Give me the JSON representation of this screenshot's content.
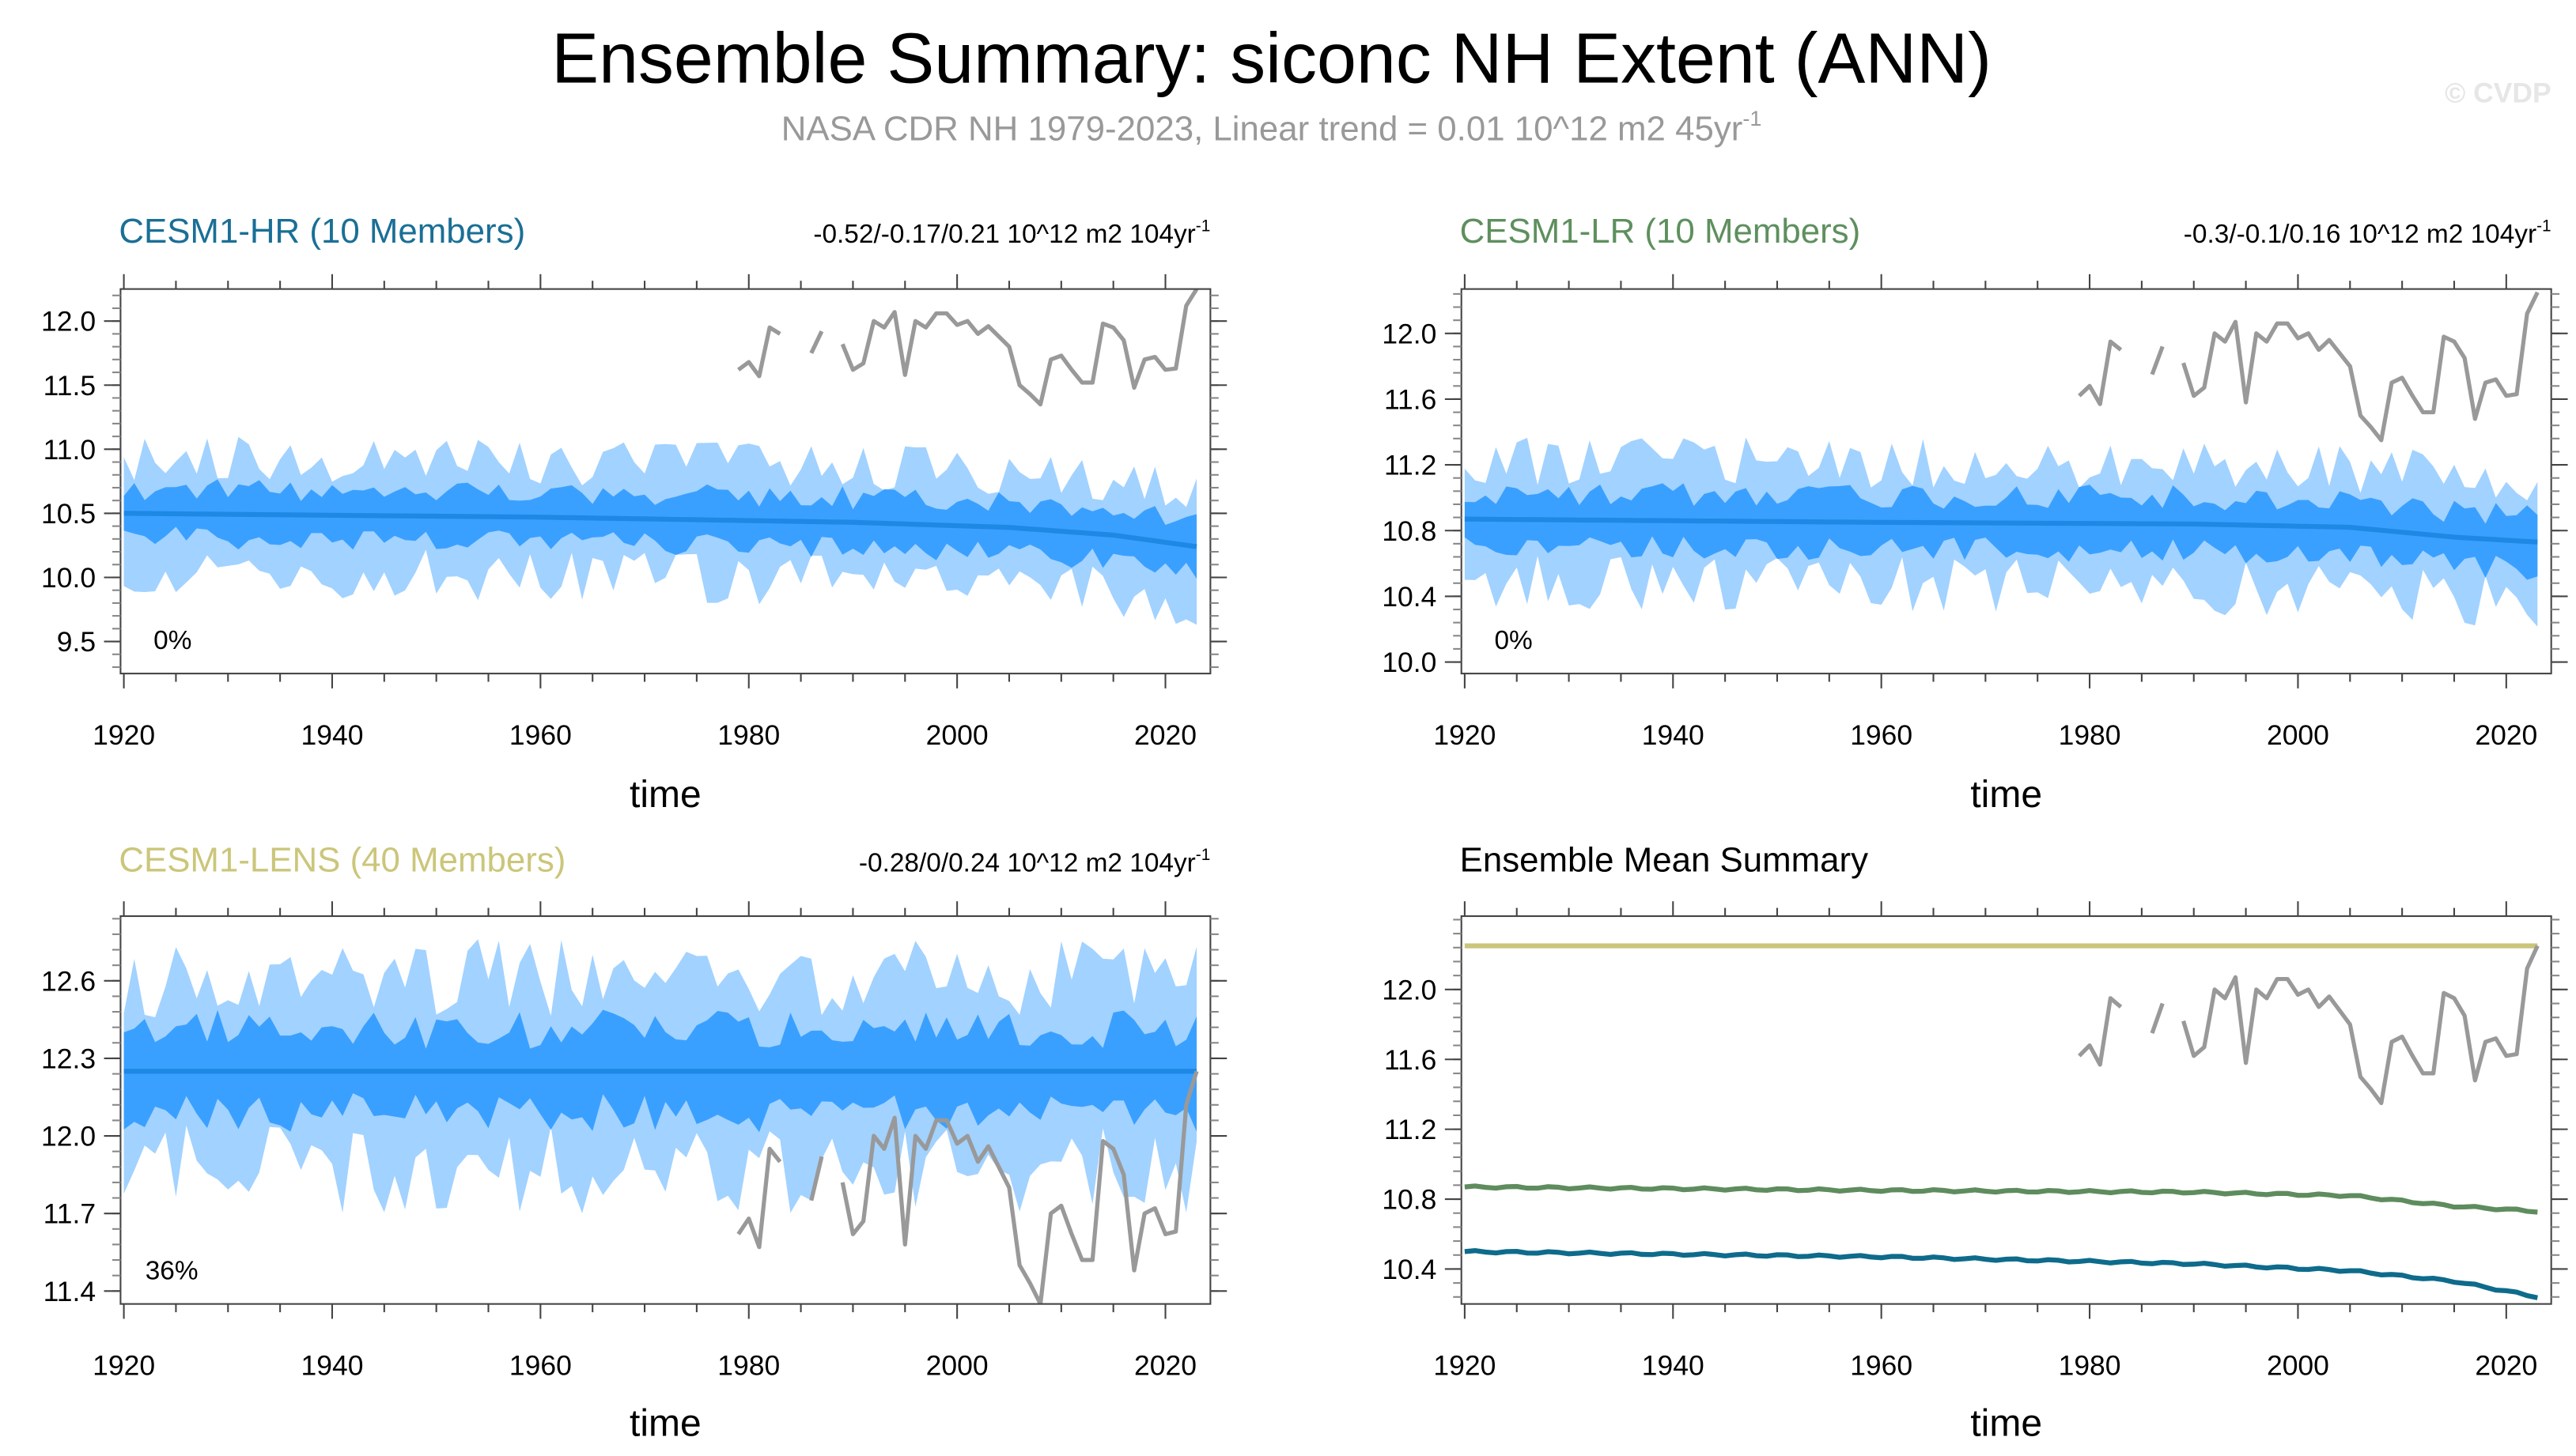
{
  "title": "Ensemble Summary: siconc NH Extent (ANN)",
  "subtitle": "NASA CDR NH 1979-2023, Linear trend = 0.01 10^12 m2 45yr",
  "subtitle_sup": "-1",
  "watermark": "© CVDP",
  "colors": {
    "band_outer": "#a2d2ff",
    "band_inner": "#3aa0ff",
    "mean": "#1e88e5",
    "obs": "#999999",
    "hr": "#0e6b8c",
    "lr": "#5e8c5e",
    "lens": "#cbc57a"
  },
  "chart_data": [
    {
      "type": "area",
      "title": "CESM1-HR (10 Members)",
      "title_color": "#1a6f96",
      "trend_text": "-0.52/-0.17/0.21 10^12 m2 104yr",
      "trend_sup": "-1",
      "percent_label": "0%",
      "xlabel": "time",
      "xlim": [
        1920,
        2024
      ],
      "xticks": [
        1920,
        1940,
        1960,
        1980,
        2000,
        2020
      ],
      "ylim": [
        9.25,
        12.25
      ],
      "yticks": [
        9.5,
        10.0,
        10.5,
        11.0,
        11.5,
        12.0
      ],
      "ytick_labels": [
        "9.5",
        "10.0",
        "10.5",
        "11.0",
        "11.5",
        "12.0"
      ],
      "ensemble_mean": {
        "years": [
          1920,
          1960,
          1990,
          2005,
          2015,
          2023
        ],
        "values": [
          10.5,
          10.47,
          10.43,
          10.39,
          10.33,
          10.24
        ]
      },
      "inner_spread": 0.2,
      "outer_spread": 0.45,
      "seed": 11
    },
    {
      "type": "area",
      "title": "CESM1-LR (10 Members)",
      "title_color": "#5e8f5e",
      "trend_text": "-0.3/-0.1/0.16 10^12 m2 104yr",
      "trend_sup": "-1",
      "percent_label": "0%",
      "xlabel": "time",
      "xlim": [
        1920,
        2024
      ],
      "xticks": [
        1920,
        1940,
        1960,
        1980,
        2000,
        2020
      ],
      "ylim": [
        9.93,
        12.27
      ],
      "yticks": [
        10.0,
        10.4,
        10.8,
        11.2,
        11.6,
        12.0
      ],
      "ytick_labels": [
        "10.0",
        "10.4",
        "10.8",
        "11.2",
        "11.6",
        "12.0"
      ],
      "ensemble_mean": {
        "years": [
          1920,
          1960,
          1990,
          2005,
          2015,
          2023
        ],
        "values": [
          10.87,
          10.85,
          10.84,
          10.82,
          10.76,
          10.73
        ]
      },
      "inner_spread": 0.17,
      "outer_spread": 0.38,
      "seed": 23
    },
    {
      "type": "area",
      "title": "CESM1-LENS (40 Members)",
      "title_color": "#cbc67a",
      "trend_text": "-0.28/0/0.24 10^12 m2 104yr",
      "trend_sup": "-1",
      "percent_label": "36%",
      "xlabel": "time",
      "xlim": [
        1920,
        2024
      ],
      "xticks": [
        1920,
        1940,
        1960,
        1980,
        2000,
        2020
      ],
      "ylim": [
        11.35,
        12.85
      ],
      "yticks": [
        11.4,
        11.7,
        12.0,
        12.3,
        12.6
      ],
      "ytick_labels": [
        "11.4",
        "11.7",
        "12.0",
        "12.3",
        "12.6"
      ],
      "ensemble_mean": {
        "years": [
          1920,
          2023
        ],
        "values": [
          12.25,
          12.25
        ]
      },
      "inner_spread": 0.17,
      "outer_spread": 0.38,
      "seed": 37
    },
    {
      "type": "line",
      "title": "Ensemble Mean Summary",
      "title_color": "#000000",
      "xlabel": "time",
      "xlim": [
        1920,
        2024
      ],
      "xticks": [
        1920,
        1940,
        1960,
        1980,
        2000,
        2020
      ],
      "ylim": [
        10.2,
        12.42
      ],
      "yticks": [
        10.4,
        10.8,
        11.2,
        11.6,
        12.0
      ],
      "ytick_labels": [
        "10.4",
        "10.8",
        "11.2",
        "11.6",
        "12.0"
      ],
      "series": [
        {
          "name": "CESM1-LENS",
          "color": "#cbc57a",
          "ref": 2
        },
        {
          "name": "CESM1-LR",
          "color": "#5e8c5e",
          "ref": 1
        },
        {
          "name": "CESM1-HR",
          "color": "#0e6b8c",
          "ref": 0
        }
      ]
    }
  ],
  "observations": {
    "name": "NASA CDR NH",
    "years": [
      1979,
      1980,
      1981,
      1982,
      1983,
      1984,
      1985,
      1986,
      1987,
      1988,
      1989,
      1990,
      1991,
      1992,
      1993,
      1994,
      1995,
      1996,
      1997,
      1998,
      1999,
      2000,
      2001,
      2002,
      2003,
      2004,
      2005,
      2006,
      2007,
      2008,
      2009,
      2010,
      2011,
      2012,
      2013,
      2014,
      2015,
      2016,
      2017,
      2018,
      2019,
      2020,
      2021,
      2022,
      2023
    ],
    "values": [
      11.62,
      11.68,
      11.57,
      11.95,
      11.9,
      null,
      null,
      11.75,
      11.92,
      null,
      11.82,
      11.62,
      11.67,
      12.0,
      11.95,
      12.07,
      11.58,
      12.0,
      11.95,
      12.06,
      12.06,
      11.97,
      12.0,
      11.9,
      11.96,
      11.88,
      11.8,
      11.5,
      11.43,
      11.35,
      11.7,
      11.73,
      11.62,
      11.52,
      11.52,
      11.98,
      11.95,
      11.85,
      11.48,
      11.7,
      11.72,
      11.62,
      11.63,
      12.12,
      12.25
    ]
  }
}
